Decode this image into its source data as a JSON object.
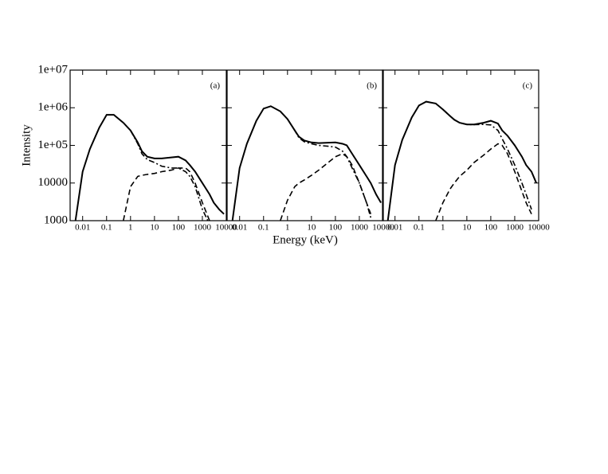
{
  "chart_data": [
    {
      "type": "line",
      "panel_label": "(a)",
      "ylabel": "Intensity",
      "xscale": "log",
      "yscale": "log",
      "xlim": [
        0.003,
        10000
      ],
      "ylim": [
        1000,
        10000000
      ],
      "xticks": [
        0.01,
        0.1,
        1,
        10,
        100,
        1000,
        10000
      ],
      "yticks": [
        1000,
        10000,
        {
          "value": 100000,
          "label": "1e+05"
        },
        {
          "value": 1000000,
          "label": "1e+06"
        },
        {
          "value": 10000000,
          "label": "1e+07"
        }
      ],
      "x": [
        0.005,
        0.01,
        0.02,
        0.05,
        0.1,
        0.2,
        0.5,
        1,
        2,
        3,
        5,
        10,
        20,
        50,
        100,
        200,
        300,
        500,
        1000,
        2000,
        3000,
        5000,
        8000
      ],
      "series": [
        {
          "color": "#000000",
          "style": "solid",
          "values": [
            1000,
            20000,
            80000,
            300000,
            650000,
            650000,
            400000,
            250000,
            120000,
            70000,
            50000,
            45000,
            45000,
            48000,
            50000,
            40000,
            30000,
            20000,
            10000,
            5000,
            3000,
            2000,
            1500
          ]
        },
        {
          "color": "#000000",
          "style": "dashed",
          "values": [
            null,
            null,
            null,
            null,
            null,
            null,
            1000,
            8000,
            15000,
            16000,
            17000,
            18000,
            20000,
            22000,
            25000,
            25000,
            20000,
            10000,
            3000,
            1000,
            500,
            null,
            null
          ]
        },
        {
          "color": "#000000",
          "style": "dashdot",
          "values": [
            null,
            null,
            null,
            null,
            null,
            null,
            null,
            250000,
            110000,
            60000,
            42000,
            35000,
            28000,
            25000,
            25000,
            20000,
            15000,
            8000,
            2000,
            800,
            null,
            null,
            null
          ]
        }
      ]
    },
    {
      "type": "line",
      "panel_label": "(b)",
      "xlabel": "Energy (keV)",
      "xscale": "log",
      "yscale": "log",
      "xlim": [
        0.003,
        10000
      ],
      "ylim": [
        1000,
        10000000
      ],
      "xticks": [
        0.01,
        0.1,
        1,
        10,
        100,
        1000,
        10000
      ],
      "x": [
        0.005,
        0.01,
        0.02,
        0.05,
        0.1,
        0.2,
        0.5,
        1,
        2,
        3,
        5,
        10,
        20,
        50,
        100,
        200,
        300,
        500,
        1000,
        2000,
        3000,
        5000,
        8000
      ],
      "series": [
        {
          "color": "#000000",
          "style": "solid",
          "values": [
            1000,
            25000,
            110000,
            450000,
            950000,
            1100000,
            800000,
            500000,
            250000,
            170000,
            135000,
            120000,
            115000,
            118000,
            120000,
            110000,
            100000,
            60000,
            30000,
            15000,
            10000,
            5000,
            3000
          ]
        },
        {
          "color": "#000000",
          "style": "dashed",
          "values": [
            null,
            null,
            null,
            null,
            null,
            null,
            1000,
            3500,
            8000,
            10000,
            12000,
            16000,
            22000,
            35000,
            50000,
            60000,
            50000,
            30000,
            10000,
            3000,
            1500,
            null,
            null
          ]
        },
        {
          "color": "#000000",
          "style": "dashdot",
          "values": [
            null,
            null,
            null,
            null,
            null,
            null,
            null,
            500000,
            250000,
            160000,
            125000,
            110000,
            100000,
            95000,
            90000,
            70000,
            50000,
            25000,
            10000,
            3000,
            1200,
            null,
            null
          ]
        }
      ]
    },
    {
      "type": "line",
      "panel_label": "(c)",
      "xscale": "log",
      "yscale": "log",
      "xlim": [
        0.003,
        10000
      ],
      "ylim": [
        1000,
        10000000
      ],
      "xticks": [
        0.01,
        0.1,
        1,
        10,
        100,
        1000,
        10000
      ],
      "x": [
        0.005,
        0.01,
        0.02,
        0.05,
        0.1,
        0.2,
        0.5,
        1,
        2,
        3,
        5,
        10,
        20,
        50,
        100,
        200,
        300,
        500,
        1000,
        2000,
        3000,
        5000,
        8000
      ],
      "series": [
        {
          "color": "#000000",
          "style": "solid",
          "values": [
            1000,
            30000,
            140000,
            550000,
            1150000,
            1450000,
            1300000,
            900000,
            600000,
            480000,
            400000,
            360000,
            360000,
            400000,
            450000,
            380000,
            250000,
            180000,
            100000,
            50000,
            30000,
            20000,
            10000
          ]
        },
        {
          "color": "#000000",
          "style": "dashed",
          "values": [
            null,
            null,
            null,
            null,
            null,
            null,
            1000,
            3000,
            7000,
            10000,
            15000,
            22000,
            35000,
            55000,
            80000,
            110000,
            100000,
            60000,
            20000,
            6000,
            3000,
            1500,
            null
          ]
        },
        {
          "color": "#000000",
          "style": "dashdot",
          "values": [
            null,
            null,
            null,
            null,
            null,
            null,
            null,
            900000,
            600000,
            480000,
            400000,
            360000,
            355000,
            360000,
            350000,
            250000,
            150000,
            80000,
            30000,
            10000,
            5000,
            2000,
            null
          ]
        }
      ]
    }
  ]
}
